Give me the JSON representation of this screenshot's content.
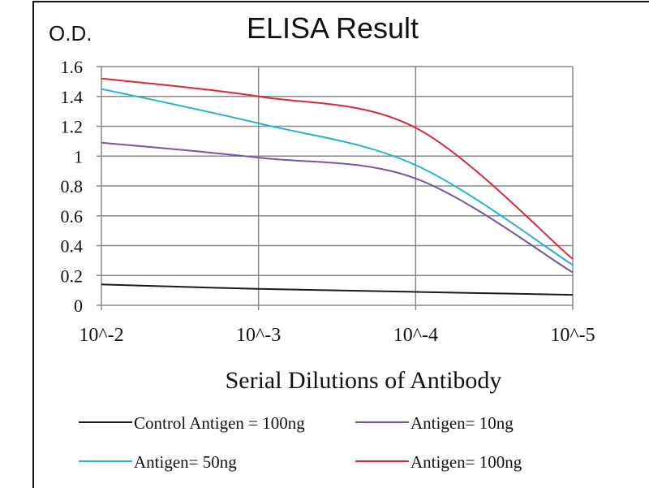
{
  "chart_data": {
    "type": "line",
    "title": "ELISA Result",
    "ylabel": "O.D.",
    "xlabel": "Serial Dilutions  of Antibody",
    "categories": [
      "10^-2",
      "10^-3",
      "10^-4",
      "10^-5"
    ],
    "ylim": [
      0,
      1.6
    ],
    "yticks": [
      "0",
      "0.2",
      "0.4",
      "0.6",
      "0.8",
      "1",
      "1.2",
      "1.4",
      "1.6"
    ],
    "grid": true,
    "legend_placement": "bottom",
    "series": [
      {
        "name": "Control Antigen = 100ng",
        "color": "#1a1a1a",
        "values": [
          0.14,
          0.11,
          0.09,
          0.07
        ]
      },
      {
        "name": "Antigen= 10ng",
        "color": "#7b52a8",
        "values": [
          1.09,
          0.99,
          0.85,
          0.22
        ]
      },
      {
        "name": "Antigen= 50ng",
        "color": "#2ab0d8",
        "values": [
          1.45,
          1.22,
          0.94,
          0.27
        ]
      },
      {
        "name": "Antigen= 100ng",
        "color": "#d62a3a",
        "values": [
          1.52,
          1.4,
          1.19,
          0.31
        ]
      }
    ]
  }
}
